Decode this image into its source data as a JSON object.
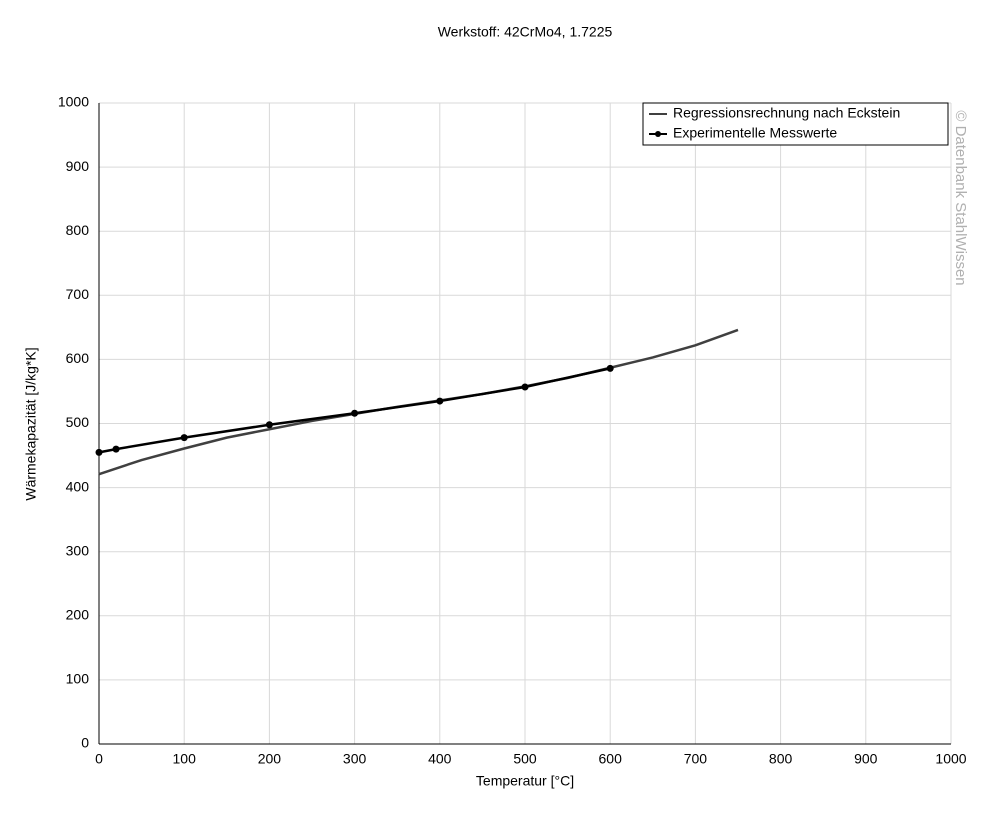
{
  "chart_data": {
    "type": "line",
    "title": "Werkstoff: 42CrMo4, 1.7225",
    "xlabel": "Temperatur [°C]",
    "ylabel": "Wärmekapazität [J/kg*K]",
    "watermark": "© Datenbank StahlWissen",
    "xlim": [
      0,
      1000
    ],
    "xticks": [
      0,
      100,
      200,
      300,
      400,
      500,
      600,
      700,
      800,
      900,
      1000
    ],
    "ylim": [
      0,
      1000
    ],
    "yticks": [
      0,
      100,
      200,
      300,
      400,
      500,
      600,
      700,
      800,
      900,
      1000
    ],
    "grid": true,
    "legend": "upper right",
    "series": [
      {
        "name": "Regressionsrechnung nach Eckstein",
        "color": "#404040",
        "markers": false,
        "x": [
          0,
          50,
          100,
          150,
          200,
          250,
          300,
          350,
          400,
          450,
          500,
          550,
          600,
          650,
          700,
          750
        ],
        "values": [
          421,
          443,
          461,
          478,
          491,
          504,
          515,
          526,
          536,
          546,
          558,
          571,
          587,
          603,
          622,
          646
        ]
      },
      {
        "name": "Experimentelle Messwerte",
        "color": "#000000",
        "markers": true,
        "x": [
          0,
          20,
          100,
          200,
          300,
          400,
          500,
          600
        ],
        "values": [
          455,
          460,
          478,
          498,
          516,
          535,
          557,
          586
        ]
      }
    ]
  }
}
